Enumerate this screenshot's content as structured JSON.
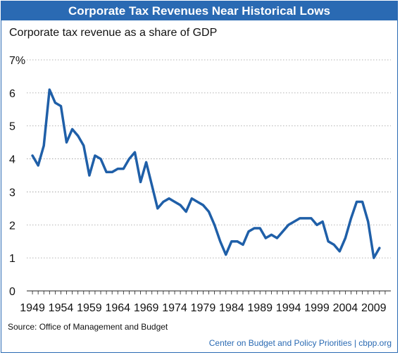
{
  "title": "Corporate Tax Revenues Near Historical Lows",
  "source": "Source: Office of Management and Budget",
  "credit": "Center on Budget and Policy Priorities | cbpp.org",
  "colors": {
    "accent": "#2a6ab3",
    "line": "#1f5fa8",
    "grid": "#9a9a9a"
  },
  "chart_data": {
    "type": "line",
    "title": "Corporate Tax Revenues Near Historical Lows",
    "ylabel": "Corporate tax revenue as a share of GDP",
    "xlabel": "",
    "xlim": [
      1948,
      2012
    ],
    "ylim": [
      0,
      7
    ],
    "xticks": [
      1949,
      1954,
      1959,
      1964,
      1969,
      1974,
      1979,
      1984,
      1989,
      1994,
      1999,
      2004,
      2009
    ],
    "yticks": [
      "0",
      "1",
      "2",
      "3",
      "4",
      "5",
      "6",
      "7%"
    ],
    "grid": true,
    "series": [
      {
        "name": "",
        "x": [
          1949,
          1950,
          1951,
          1952,
          1953,
          1954,
          1955,
          1956,
          1957,
          1958,
          1959,
          1960,
          1961,
          1962,
          1963,
          1964,
          1965,
          1966,
          1967,
          1968,
          1969,
          1970,
          1971,
          1972,
          1973,
          1974,
          1975,
          1976,
          1977,
          1978,
          1979,
          1980,
          1981,
          1982,
          1983,
          1984,
          1985,
          1986,
          1987,
          1988,
          1989,
          1990,
          1991,
          1992,
          1993,
          1994,
          1995,
          1996,
          1997,
          1998,
          1999,
          2000,
          2001,
          2002,
          2003,
          2004,
          2005,
          2006,
          2007,
          2008,
          2009,
          2010
        ],
        "values": [
          4.1,
          3.8,
          4.4,
          6.1,
          5.7,
          5.6,
          4.5,
          4.9,
          4.7,
          4.4,
          3.5,
          4.1,
          4.0,
          3.6,
          3.6,
          3.7,
          3.7,
          4.0,
          4.2,
          3.3,
          3.9,
          3.2,
          2.5,
          2.7,
          2.8,
          2.7,
          2.6,
          2.4,
          2.8,
          2.7,
          2.6,
          2.4,
          2.0,
          1.5,
          1.1,
          1.5,
          1.5,
          1.4,
          1.8,
          1.9,
          1.9,
          1.6,
          1.7,
          1.6,
          1.8,
          2.0,
          2.1,
          2.2,
          2.2,
          2.2,
          2.0,
          2.1,
          1.5,
          1.4,
          1.2,
          1.6,
          2.2,
          2.7,
          2.7,
          2.1,
          1.0,
          1.3
        ]
      }
    ]
  }
}
